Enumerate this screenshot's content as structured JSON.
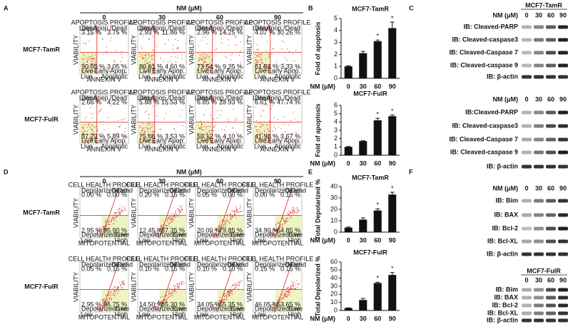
{
  "panel_labels": [
    "A",
    "B",
    "C",
    "D",
    "E",
    "F"
  ],
  "panel_a": {
    "header": "NM (μM)",
    "doses": [
      "0",
      "30",
      "60",
      "90"
    ],
    "plot_title": "APOPTOSIS PROFILE",
    "y_axis": "VIABILITY",
    "x_axis": "ANNEXIN V",
    "axis_ticks": [
      "Live",
      "Apoptotic"
    ],
    "quadrants": [
      "Dead",
      "Late Apop./Dead",
      "Live",
      "Early Apop."
    ],
    "rows": [
      {
        "name": "MCF7-TamR",
        "plots": [
          [
            "3.15 %",
            "3.75 %",
            "90.05 %",
            "3.05 %"
          ],
          [
            "2.93 %",
            "11.86 %",
            "80.61 %",
            "4.60 %"
          ],
          [
            "2.96 %",
            "14.25 %",
            "73.54 %",
            "9.25 %"
          ],
          [
            "4.07 %",
            "30.26 %",
            "61.54 %",
            "3.33 %"
          ]
        ]
      },
      {
        "name": "MCF7-FulR",
        "plots": [
          [
            "2.66 %",
            "4.22 %",
            "87.23 %",
            "5.89 %"
          ],
          [
            "5.88 %",
            "15.53 %",
            "75.06 %",
            "3.53 %"
          ],
          [
            "6.85 %",
            "29.93 %",
            "59.12 %",
            "4.10 %"
          ],
          [
            "6.61 %",
            "47.74 %",
            "41.98 %",
            "3.67 %"
          ]
        ]
      }
    ]
  },
  "panel_d": {
    "header": "NM (μM)",
    "doses": [
      "0",
      "30",
      "60",
      "90"
    ],
    "plot_title": "CELL HEALTH PROFILE",
    "y_axis": "VIABILITY",
    "x_axis": "MITOPOTENTIAL",
    "axis_ticks": [
      "Low",
      "High"
    ],
    "quadrants": [
      "Depolarized/Dead",
      "Dead",
      "Depolarized/Live",
      "Live"
    ],
    "rows": [
      {
        "name": "MCF7-TamR",
        "plots": [
          [
            "0.00 %",
            "0.00 %",
            "2.95 %",
            "95.90 %"
          ],
          [
            "0.20 %",
            "0.15 %",
            "12.45 %",
            "87.35 %"
          ],
          [
            "0.05 %",
            "0.00 %",
            "20.00 %",
            "79.85 %"
          ],
          [
            "0.00 %",
            "0.15 %",
            "34.90 %",
            "64.85 %"
          ]
        ]
      },
      {
        "name": "MCF7-FulR",
        "plots": [
          [
            "0.05 %",
            "0.15 %",
            "2.95 %",
            "96.75 %"
          ],
          [
            "0.10 %",
            "0.15 %",
            "14.50 %",
            "85.30 %"
          ],
          [
            "0.10 %",
            "0.10 %",
            "34.05 %",
            "65.35 %"
          ],
          [
            "0.15 %",
            "0.15 %",
            "46.05 %",
            "53.65 %"
          ]
        ]
      }
    ]
  },
  "chart_data": [
    {
      "type": "bar",
      "title": "MCF7-TamR",
      "y_label": "Fold of apoptosis",
      "x_label": "NM (μM)",
      "categories": [
        "0",
        "30",
        "60",
        "90"
      ],
      "values": [
        1,
        2.1,
        3.1,
        4.2
      ],
      "errors": [
        0.05,
        0.15,
        0.1,
        0.5
      ],
      "significance": [
        null,
        null,
        "*",
        "*"
      ],
      "color": "#111111",
      "ylim": [
        0,
        5
      ],
      "yticks": [
        0,
        1,
        2,
        3,
        4,
        5
      ]
    },
    {
      "type": "bar",
      "title": "MCF7-FulR",
      "y_label": "Fold of apoptosis",
      "x_label": "NM (μM)",
      "categories": [
        "0",
        "30",
        "60",
        "90"
      ],
      "values": [
        1,
        1.7,
        4.2,
        4.7
      ],
      "errors": [
        0.05,
        0.05,
        0.25,
        0.15
      ],
      "significance": [
        null,
        null,
        "*",
        "*"
      ],
      "color": "#111111",
      "ylim": [
        0,
        6
      ],
      "yticks": [
        0,
        1,
        2,
        3,
        4,
        5,
        6
      ]
    },
    {
      "type": "bar",
      "title": "MCF7-TamR",
      "y_label": "Total Depolarized %",
      "x_label": "NM (μM)",
      "categories": [
        "0",
        "30",
        "60",
        "90"
      ],
      "values": [
        4,
        11,
        19,
        33
      ],
      "errors": [
        0.5,
        1.5,
        1.5,
        2
      ],
      "significance": [
        null,
        null,
        "*",
        "*"
      ],
      "color": "#111111",
      "ylim": [
        0,
        40
      ],
      "yticks": [
        0,
        10,
        20,
        30,
        40
      ]
    },
    {
      "type": "bar",
      "title": "MCF7-FulR",
      "y_label": "Total Depolarized %",
      "x_label": "NM (μM)",
      "categories": [
        "0",
        "30",
        "60",
        "90"
      ],
      "values": [
        3,
        13,
        34,
        44
      ],
      "errors": [
        0.3,
        2,
        1,
        3
      ],
      "significance": [
        null,
        null,
        "*",
        "*"
      ],
      "color": "#111111",
      "ylim": [
        0,
        60
      ],
      "yticks": [
        0,
        10,
        20,
        30,
        40,
        50,
        60
      ]
    }
  ],
  "panel_c": [
    {
      "title": "MCF7-TamR",
      "header": "NM (μM)",
      "lanes": [
        "0",
        "30",
        "60",
        "90"
      ],
      "rows": [
        "IB: Cleaved-PARP",
        "IB: Cleaved-caspase3",
        "IB: Cleaved-Caspase 7",
        "IB: Cleaved-caspase 9",
        "IB: β-actin"
      ]
    },
    {
      "header": "NM (μM)",
      "lanes": [
        "0",
        "30",
        "60",
        "90"
      ],
      "rows": [
        "IB:Cleaved-PARP",
        "IB: Cleaved-caspase3",
        "IB: Cleaved-Caspase 7",
        "IB: Cleaved-caspase 9",
        "IB: β-actin"
      ]
    }
  ],
  "panel_f": [
    {
      "header": "NM (μM)",
      "lanes": [
        "0",
        "30",
        "60",
        "90"
      ],
      "rows": [
        "IB: Bim",
        "IB: BAX",
        "IB: Bcl-2",
        "IB: Bcl-XL",
        "IB: β-actin"
      ]
    },
    {
      "title": "MCF7-FulR",
      "lanes": [
        "0",
        "30",
        "60",
        "90"
      ],
      "rows": [
        "IB: Bim",
        "IB: BAX",
        "IB: Bcl-2",
        "IB: Bcl-XL",
        "IB: β-actin"
      ]
    }
  ]
}
